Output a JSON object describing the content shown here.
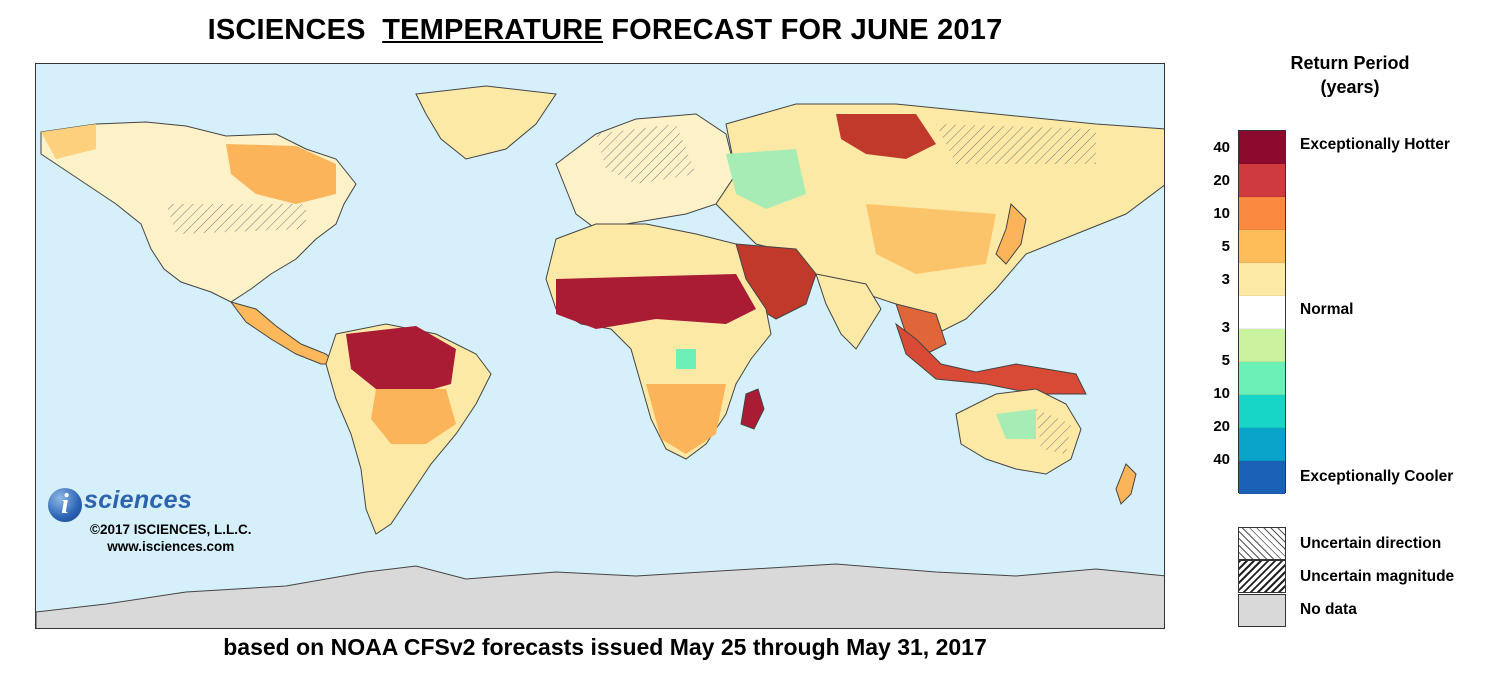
{
  "title": {
    "part1": "ISCIENCES",
    "part2": "TEMPERATURE",
    "part3": "FORECAST FOR JUNE 2017"
  },
  "subtitle": "based on NOAA CFSv2 forecasts issued May 25 through May 31, 2017",
  "logo": {
    "mark": "i",
    "name": "sciences",
    "copyright": "©2017 ISCIENCES, L.L.C.",
    "url": "www.isciences.com"
  },
  "legend": {
    "title_line1": "Return Period",
    "title_line2": "(years)",
    "colors": [
      "#8b0a2e",
      "#cf3a3f",
      "#f98a40",
      "#fdbd58",
      "#fde9a6",
      "#ffffff",
      "#caf3a0",
      "#6cf0b7",
      "#17d6c8",
      "#0aa3c9",
      "#1a61b7"
    ],
    "ticks_hot": [
      "40",
      "20",
      "10",
      "5",
      "3"
    ],
    "ticks_cool": [
      "3",
      "5",
      "10",
      "20",
      "40"
    ],
    "label_hot": "Exceptionally Hotter",
    "label_normal": "Normal",
    "label_cool": "Exceptionally Cooler",
    "uncertain_direction": "Uncertain direction",
    "uncertain_magnitude": "Uncertain magnitude",
    "no_data": "No data"
  },
  "map": {
    "ocean_color": "#d6f0fb",
    "land_color": "#ffffff",
    "no_data_color": "#d9d9d9"
  }
}
